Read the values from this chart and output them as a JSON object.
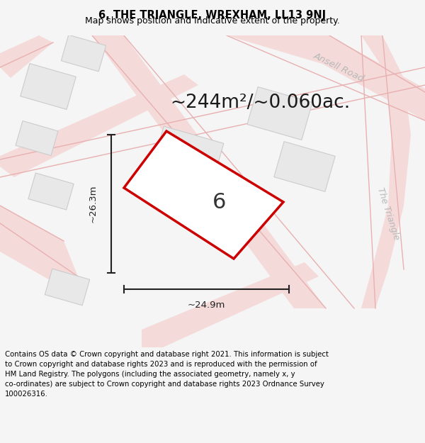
{
  "title": "6, THE TRIANGLE, WREXHAM, LL13 9NJ",
  "subtitle": "Map shows position and indicative extent of the property.",
  "footer": "Contains OS data © Crown copyright and database right 2021. This information is subject to Crown copyright and database rights 2023 and is reproduced with the permission of HM Land Registry. The polygons (including the associated geometry, namely x, y co-ordinates) are subject to Crown copyright and database rights 2023 Ordnance Survey 100026316.",
  "area_label": "~244m²/~0.060ac.",
  "width_label": "~24.9m",
  "height_label": "~26.3m",
  "number_label": "6",
  "bg_color": "#f5f5f5",
  "map_bg_color": "#ffffff",
  "road_fill_color": "#f5dada",
  "road_line_color": "#e8b0b0",
  "building_color": "#e8e8e8",
  "building_edge_color": "#cccccc",
  "plot_outline_color": "#cc0000",
  "plot_fill_color": "#ffffff",
  "road_label_color": "#b8b8b8",
  "dim_color": "#222222",
  "title_fontsize": 10.5,
  "subtitle_fontsize": 9.0,
  "footer_fontsize": 7.3,
  "area_fontsize": 19,
  "dim_label_fontsize": 9.5,
  "number_fontsize": 22
}
